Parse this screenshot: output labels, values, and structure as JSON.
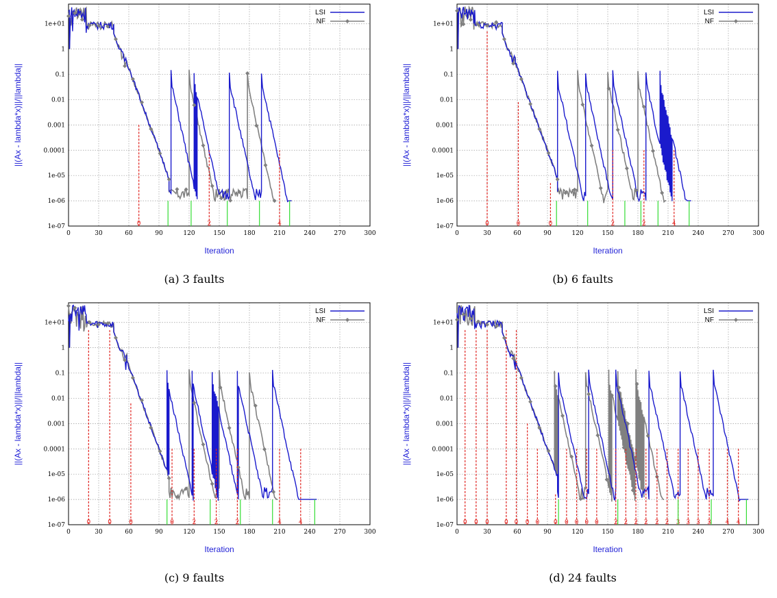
{
  "colors": {
    "lsi": "#1a1acc",
    "nf": "#808080",
    "fault": "#e0201c",
    "converge": "#33dd33",
    "axis_title": "#1f1fd6",
    "grid": "#9a9a9a"
  },
  "chart_data": [
    {
      "type": "line",
      "caption": "(a) 3 faults",
      "xlabel": "Iteration",
      "ylabel": "||(Ax - lambda*x)||/||lambda||",
      "xlim": [
        0,
        300
      ],
      "ylim": [
        1e-07,
        60
      ],
      "yscale": "log",
      "xticks": [
        "0",
        "30",
        "60",
        "90",
        "120",
        "150",
        "180",
        "210",
        "240",
        "270",
        "300"
      ],
      "yticks": [
        "1e-07",
        "1e-06",
        "1e-05",
        "0.0001",
        "0.001",
        "0.01",
        "0.1",
        "1",
        "1e+01"
      ],
      "legend": [
        "LSI",
        "NF"
      ],
      "legend_position": "top-right",
      "faults": [
        {
          "x": 70,
          "label": "0"
        },
        {
          "x": 140,
          "label": "2"
        },
        {
          "x": 210,
          "label": "4"
        }
      ],
      "converged": [
        99,
        122,
        158,
        190,
        220
      ],
      "nf_peaks": [
        120,
        178
      ],
      "lsi_peaks": [
        102,
        125,
        160,
        192
      ]
    },
    {
      "type": "line",
      "caption": "(b) 6 faults",
      "xlabel": "Iteration",
      "ylabel": "||(Ax - lambda*x)||/||lambda||",
      "xlim": [
        0,
        300
      ],
      "ylim": [
        1e-07,
        60
      ],
      "yscale": "log",
      "xticks": [
        "0",
        "30",
        "60",
        "90",
        "120",
        "150",
        "180",
        "210",
        "240",
        "270",
        "300"
      ],
      "yticks": [
        "1e-07",
        "1e-06",
        "1e-05",
        "0.0001",
        "0.001",
        "0.01",
        "0.1",
        "1",
        "1e+01"
      ],
      "legend": [
        "LSI",
        "NF"
      ],
      "legend_position": "top-right",
      "faults": [
        {
          "x": 30,
          "label": "0"
        },
        {
          "x": 61,
          "label": "0"
        },
        {
          "x": 93,
          "label": "0"
        },
        {
          "x": 155,
          "label": "2"
        },
        {
          "x": 186,
          "label": "2"
        },
        {
          "x": 216,
          "label": "4"
        }
      ],
      "converged": [
        99,
        130,
        167,
        183,
        200,
        231
      ],
      "nf_peaks": [
        120,
        150,
        180
      ],
      "lsi_peaks": [
        100,
        128,
        155,
        188,
        202
      ]
    },
    {
      "type": "line",
      "caption": "(c) 9 faults",
      "xlabel": "Iteration",
      "ylabel": "||(Ax - lambda*x)||/||lambda||",
      "xlim": [
        0,
        300
      ],
      "ylim": [
        1e-07,
        60
      ],
      "yscale": "log",
      "xticks": [
        "0",
        "30",
        "60",
        "90",
        "120",
        "150",
        "180",
        "210",
        "240",
        "270",
        "300"
      ],
      "yticks": [
        "1e-07",
        "1e-06",
        "1e-05",
        "0.0001",
        "0.001",
        "0.01",
        "0.1",
        "1",
        "1e+01"
      ],
      "legend": [
        "LSI",
        "NF"
      ],
      "legend_position": "top-right",
      "faults": [
        {
          "x": 20,
          "label": "0"
        },
        {
          "x": 41,
          "label": "0"
        },
        {
          "x": 62,
          "label": "0"
        },
        {
          "x": 103,
          "label": "0"
        },
        {
          "x": 125,
          "label": "2"
        },
        {
          "x": 147,
          "label": "2"
        },
        {
          "x": 168,
          "label": "2"
        },
        {
          "x": 210,
          "label": "4"
        },
        {
          "x": 231,
          "label": "4"
        }
      ],
      "converged": [
        98,
        141,
        171,
        203,
        245
      ],
      "nf_peaks": [
        120,
        150,
        180
      ],
      "lsi_peaks": [
        98,
        123,
        143,
        168,
        203
      ]
    },
    {
      "type": "line",
      "caption": "(d) 24 faults",
      "xlabel": "Iteration",
      "ylabel": "||(Ax - lambda*x)||/||lambda||",
      "xlim": [
        0,
        300
      ],
      "ylim": [
        1e-07,
        60
      ],
      "yscale": "log",
      "xticks": [
        "0",
        "30",
        "60",
        "90",
        "120",
        "150",
        "180",
        "210",
        "240",
        "270",
        "300"
      ],
      "yticks": [
        "1e-07",
        "1e-06",
        "1e-05",
        "0.0001",
        "0.001",
        "0.01",
        "0.1",
        "1",
        "1e+01"
      ],
      "legend": [
        "LSI",
        "NF"
      ],
      "legend_position": "top-right",
      "faults": [
        {
          "x": 8,
          "label": "0"
        },
        {
          "x": 19,
          "label": "0"
        },
        {
          "x": 30,
          "label": "0"
        },
        {
          "x": 49,
          "label": "0"
        },
        {
          "x": 59,
          "label": "0"
        },
        {
          "x": 70,
          "label": "0"
        },
        {
          "x": 80,
          "label": "0"
        },
        {
          "x": 98,
          "label": "0"
        },
        {
          "x": 109,
          "label": "0"
        },
        {
          "x": 119,
          "label": "0"
        },
        {
          "x": 129,
          "label": "0"
        },
        {
          "x": 139,
          "label": "0"
        },
        {
          "x": 158,
          "label": "2"
        },
        {
          "x": 168,
          "label": "2"
        },
        {
          "x": 178,
          "label": "2"
        },
        {
          "x": 188,
          "label": "2"
        },
        {
          "x": 199,
          "label": "2"
        },
        {
          "x": 209,
          "label": "2"
        },
        {
          "x": 220,
          "label": "3"
        },
        {
          "x": 230,
          "label": "3"
        },
        {
          "x": 240,
          "label": "3"
        },
        {
          "x": 251,
          "label": "3"
        },
        {
          "x": 269,
          "label": "4"
        },
        {
          "x": 280,
          "label": "4"
        }
      ],
      "converged": [
        101,
        160,
        220,
        253,
        288
      ],
      "nf_peaks": [
        97,
        128,
        151,
        160,
        178
      ],
      "lsi_peaks": [
        101,
        131,
        158,
        191,
        222,
        255
      ]
    }
  ]
}
